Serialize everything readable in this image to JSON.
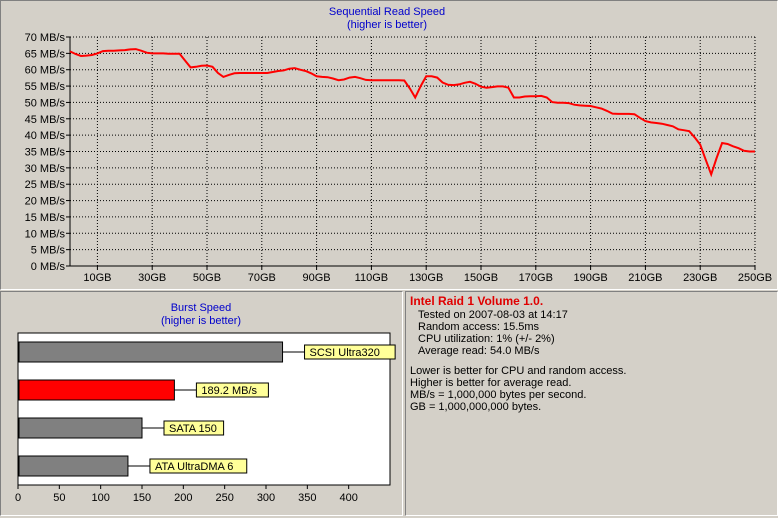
{
  "seq_chart": {
    "title": "Sequential Read Speed",
    "subtitle": "(higher is better)"
  },
  "burst_chart": {
    "title": "Burst Speed",
    "subtitle": "(higher is better)"
  },
  "info": {
    "title": "Intel Raid 1 Volume 1.0.",
    "lines": [
      "Tested on 2007-08-03 at 14:17",
      "Random access: 15.5ms",
      "CPU utilization: 1% (+/- 2%)",
      "Average read: 54.0 MB/s"
    ],
    "notes": [
      "Lower is better for CPU and random access.",
      "Higher is better for average read.",
      "MB/s = 1,000,000 bytes per second.",
      "GB = 1,000,000,000 bytes."
    ]
  },
  "colors": {
    "line": "#ff0000",
    "title_text": "#0000cc",
    "highlight_bar": "#ff0000",
    "gray_bar": "#808080",
    "label_bg": "#ffff99",
    "highlight_text": "#e00000"
  },
  "chart_data": [
    {
      "type": "line",
      "title": "Sequential Read Speed",
      "subtitle": "(higher is better)",
      "ylim": [
        0,
        70
      ],
      "xlim": [
        0,
        250
      ],
      "yticks": [
        "0 MB/s",
        "5 MB/s",
        "10 MB/s",
        "15 MB/s",
        "20 MB/s",
        "25 MB/s",
        "30 MB/s",
        "35 MB/s",
        "40 MB/s",
        "45 MB/s",
        "50 MB/s",
        "55 MB/s",
        "60 MB/s",
        "65 MB/s",
        "70 MB/s"
      ],
      "ytick_values": [
        0,
        5,
        10,
        15,
        20,
        25,
        30,
        35,
        40,
        45,
        50,
        55,
        60,
        65,
        70
      ],
      "xticks": [
        "10GB",
        "30GB",
        "50GB",
        "70GB",
        "90GB",
        "110GB",
        "130GB",
        "150GB",
        "170GB",
        "190GB",
        "210GB",
        "230GB",
        "250GB"
      ],
      "xtick_values": [
        10,
        30,
        50,
        70,
        90,
        110,
        130,
        150,
        170,
        190,
        210,
        230,
        250
      ],
      "grid": true,
      "x": [
        0,
        2,
        4,
        6,
        8,
        10,
        12,
        14,
        16,
        18,
        20,
        22,
        24,
        26,
        28,
        30,
        32,
        34,
        36,
        38,
        40,
        42,
        44,
        46,
        48,
        50,
        52,
        54,
        56,
        58,
        60,
        62,
        64,
        66,
        68,
        70,
        72,
        74,
        76,
        78,
        80,
        82,
        84,
        86,
        88,
        90,
        92,
        94,
        96,
        98,
        100,
        102,
        104,
        106,
        108,
        110,
        112,
        114,
        116,
        118,
        120,
        122,
        124,
        126,
        128,
        130,
        132,
        134,
        136,
        138,
        140,
        142,
        144,
        146,
        148,
        150,
        152,
        154,
        156,
        158,
        160,
        162,
        164,
        166,
        168,
        170,
        172,
        174,
        176,
        178,
        180,
        182,
        184,
        186,
        188,
        190,
        192,
        194,
        196,
        198,
        200,
        202,
        204,
        206,
        208,
        210,
        212,
        214,
        216,
        218,
        220,
        222,
        224,
        226,
        228,
        230,
        232,
        234,
        236,
        238,
        240,
        242,
        244,
        246,
        248,
        250
      ],
      "y": [
        65.6,
        64.8,
        64.2,
        64.3,
        64.5,
        65.0,
        65.7,
        65.8,
        65.8,
        65.9,
        66.0,
        66.2,
        66.3,
        65.8,
        65.2,
        65.0,
        65.0,
        65.0,
        64.9,
        64.9,
        64.9,
        62.8,
        60.7,
        60.9,
        61.2,
        61.3,
        60.9,
        59.0,
        57.8,
        58.4,
        58.9,
        59.0,
        59.0,
        59.0,
        59.0,
        59.0,
        59.0,
        59.3,
        59.6,
        59.8,
        60.3,
        60.5,
        60.0,
        59.6,
        58.9,
        58.0,
        57.8,
        57.7,
        57.3,
        56.8,
        57.0,
        57.6,
        57.8,
        57.4,
        56.9,
        56.8,
        56.8,
        56.8,
        56.8,
        56.8,
        56.8,
        56.7,
        54.3,
        51.5,
        55.0,
        58.0,
        58.0,
        57.6,
        56.1,
        55.4,
        55.3,
        55.5,
        56.0,
        56.3,
        55.7,
        54.8,
        54.5,
        54.7,
        54.9,
        54.9,
        54.5,
        51.5,
        51.5,
        51.8,
        51.9,
        51.9,
        52.0,
        51.5,
        50.1,
        49.9,
        49.9,
        49.8,
        49.3,
        49.1,
        49.0,
        48.9,
        48.5,
        48.1,
        47.4,
        46.6,
        46.5,
        46.5,
        46.5,
        46.4,
        45.3,
        44.3,
        43.9,
        43.7,
        43.5,
        43.1,
        42.7,
        41.8,
        41.5,
        41.2,
        39.3,
        37.1,
        32.5,
        28.0,
        33.0,
        37.6,
        37.3,
        36.6,
        36.0,
        35.2,
        35.0,
        35.0
      ]
    },
    {
      "type": "bar",
      "orientation": "horizontal",
      "title": "Burst Speed",
      "subtitle": "(higher is better)",
      "xlim": [
        0,
        450
      ],
      "xticks": [
        0,
        50,
        100,
        150,
        200,
        250,
        300,
        350,
        400
      ],
      "categories": [
        "SCSI Ultra320",
        "189.2 MB/s",
        "SATA 150",
        "ATA UltraDMA 6"
      ],
      "values": [
        320,
        189.2,
        150,
        133
      ],
      "highlight": [
        false,
        true,
        false,
        false
      ]
    }
  ]
}
